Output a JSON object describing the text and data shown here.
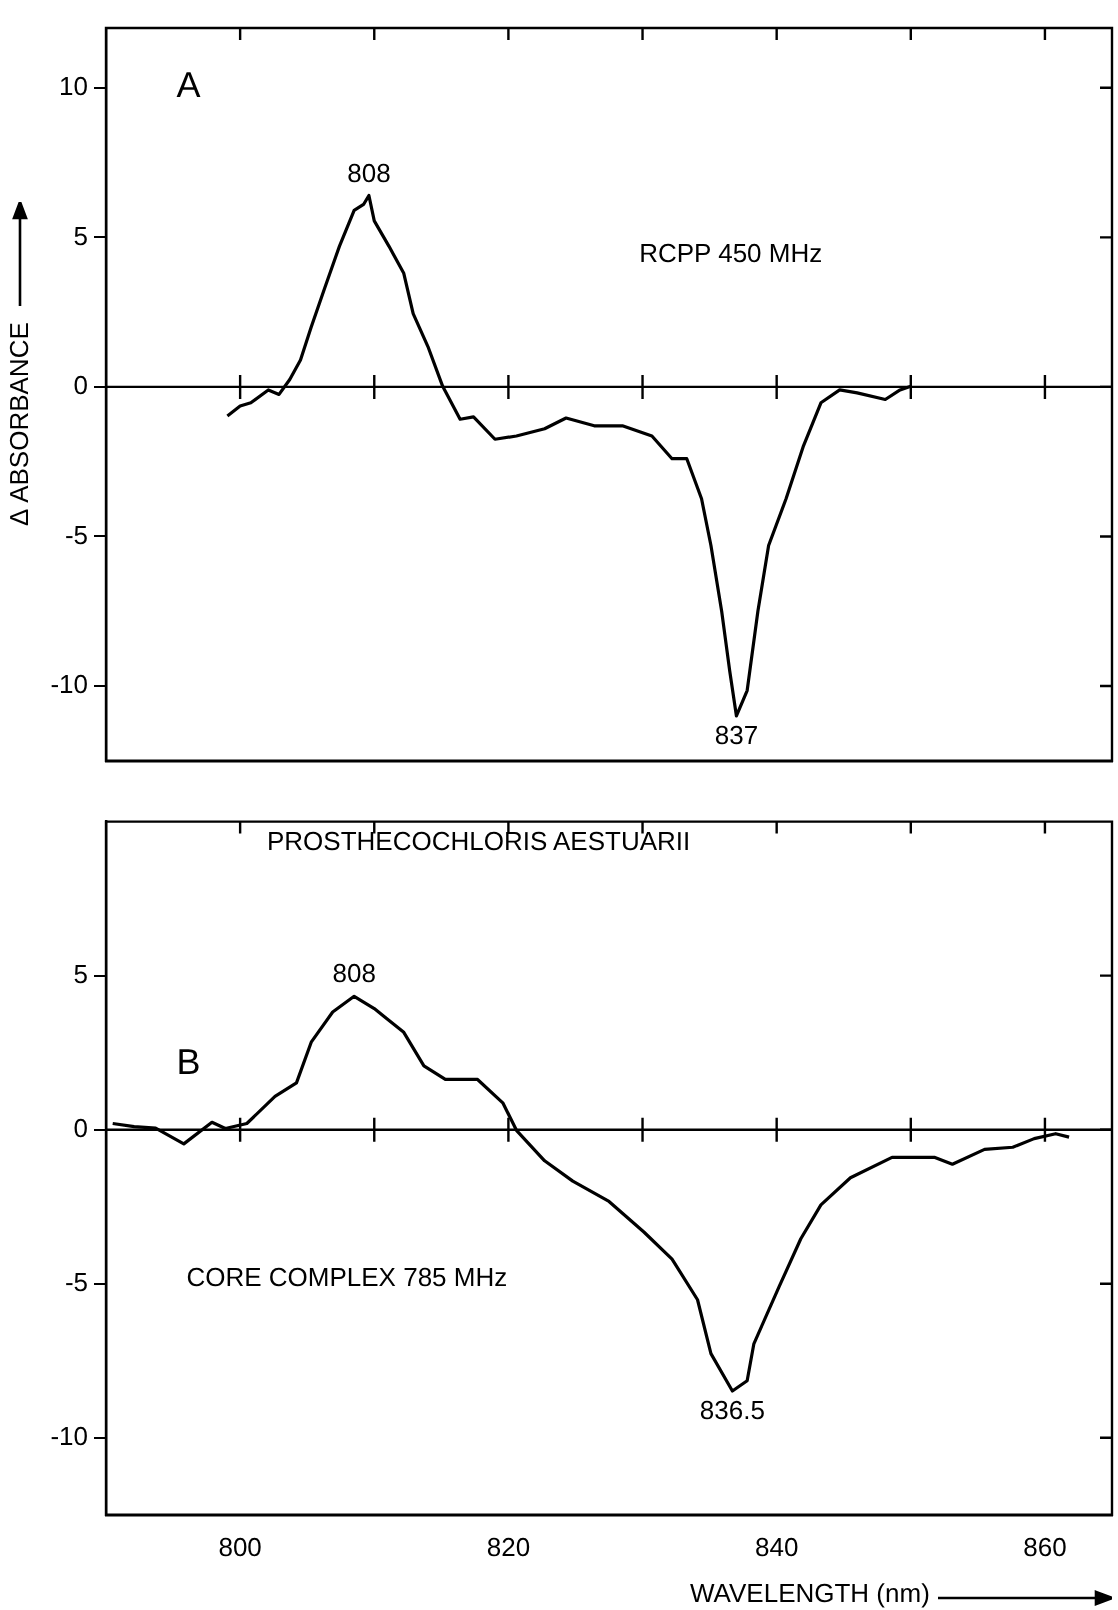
{
  "chart_data": [
    {
      "type": "line",
      "ylabel": "Δ ABSORBANCE",
      "xlim": [
        790,
        865
      ],
      "xticks": [
        {
          "value": 800,
          "label": null
        },
        {
          "value": 810,
          "label": null
        },
        {
          "value": 820,
          "label": null
        },
        {
          "value": 830,
          "label": null
        },
        {
          "value": 840,
          "label": null
        },
        {
          "value": 850,
          "label": null
        },
        {
          "value": 860,
          "label": null
        }
      ],
      "ylim": [
        -12.5,
        12
      ],
      "yticks": [
        -10,
        -5,
        0,
        5,
        10
      ],
      "tick_labels": "y",
      "ref_lines": [
        {
          "axis": "y",
          "value": 0
        }
      ],
      "annotations": [
        "A",
        "RCPP 450 MHz",
        {
          "text": "808",
          "x": 809.6,
          "y": 6.4
        },
        {
          "text": "837",
          "x": 837,
          "y": -11
        }
      ],
      "series": [
        {
          "color": "#000000",
          "x": [
            799.05,
            800,
            800.8,
            802.1,
            802.9,
            803.7,
            804.5,
            805.3,
            806.3,
            807.4,
            808.5,
            809.2,
            809.6,
            810,
            811.1,
            812.2,
            812.9,
            814,
            815.1,
            816.4,
            817.4,
            819,
            820.6,
            822.7,
            824.3,
            826.4,
            828.5,
            830.7,
            832.2,
            833.3,
            834.4,
            835.1,
            835.9,
            836.5,
            837,
            837.8,
            838.6,
            839.4,
            840.7,
            842,
            843.3,
            844.7,
            846,
            848.1,
            849.2,
            850
          ],
          "values": [
            -0.97,
            -0.64,
            -0.53,
            -0.1,
            -0.25,
            0.25,
            0.9,
            2.0,
            3.3,
            4.7,
            5.9,
            6.1,
            6.4,
            5.55,
            4.7,
            3.8,
            2.45,
            1.35,
            0.02,
            -1.08,
            -1.0,
            -1.75,
            -1.64,
            -1.4,
            -1.04,
            -1.3,
            -1.3,
            -1.64,
            -2.4,
            -2.4,
            -3.74,
            -5.3,
            -7.5,
            -9.5,
            -11.0,
            -10.15,
            -7.5,
            -5.3,
            -3.74,
            -1.97,
            -0.53,
            -0.1,
            -0.2,
            -0.42,
            -0.1,
            0.02
          ]
        }
      ]
    },
    {
      "type": "line",
      "title": "PROSTHECOCHLORIS AESTUARII",
      "xlabel": "WAVELENGTH (nm)",
      "xlim": [
        790,
        865
      ],
      "xticks": [
        800,
        {
          "value": 810,
          "label": null
        },
        820,
        {
          "value": 830,
          "label": null
        },
        840,
        {
          "value": 850,
          "label": null
        },
        860
      ],
      "ylim": [
        -12.5,
        10
      ],
      "yticks": [
        -10,
        -5,
        0,
        5
      ],
      "ref_lines": [
        {
          "axis": "y",
          "value": 0
        }
      ],
      "annotations": [
        "B",
        "CORE COMPLEX 785 MHz",
        {
          "text": "808",
          "x": 808.5,
          "y": 4.33
        },
        {
          "text": "836.5",
          "x": 836.7,
          "y": -8.48
        }
      ],
      "series": [
        {
          "color": "#000000",
          "x": [
            790.5,
            792.1,
            793.7,
            795.8,
            797.9,
            798.9,
            800.5,
            802.6,
            804.2,
            805.3,
            806.9,
            808.5,
            810,
            812.2,
            813.7,
            815.3,
            817.7,
            819.6,
            820.6,
            822.7,
            824.8,
            827.5,
            830.1,
            832.2,
            834.1,
            835.1,
            836.7,
            837.8,
            838.3,
            840.2,
            841.8,
            843.3,
            845.5,
            848.6,
            851.8,
            853.1,
            855.5,
            857.6,
            859.2,
            860.8,
            861.8
          ],
          "values": [
            0.2,
            0.1,
            0.05,
            -0.46,
            0.24,
            0.04,
            0.2,
            1.08,
            1.52,
            2.84,
            3.82,
            4.33,
            3.93,
            3.16,
            2.07,
            1.63,
            1.63,
            0.86,
            -0.02,
            -1.01,
            -1.67,
            -2.33,
            -3.32,
            -4.2,
            -5.52,
            -7.27,
            -8.48,
            -8.15,
            -6.95,
            -5.08,
            -3.54,
            -2.44,
            -1.56,
            -0.9,
            -0.9,
            -1.12,
            -0.64,
            -0.57,
            -0.29,
            -0.13,
            -0.24
          ]
        }
      ]
    }
  ]
}
